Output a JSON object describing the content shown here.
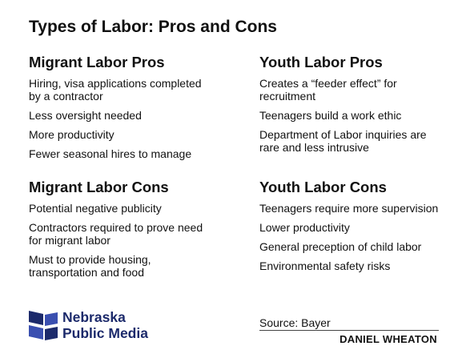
{
  "title": "Types of Labor: Pros and Cons",
  "sections": [
    {
      "heading": "Migrant Labor Pros",
      "items": [
        "Hiring, visa applications completed by a contractor",
        "Less oversight needed",
        "More productivity",
        "Fewer seasonal hires to manage"
      ]
    },
    {
      "heading": "Youth Labor Pros",
      "items": [
        "Creates a “feeder effect” for recruitment",
        "Teenagers build a work ethic",
        "Department of Labor inquiries are rare and less intrusive"
      ]
    },
    {
      "heading": "Migrant Labor Cons",
      "items": [
        "Potential negative publicity",
        "Contractors required to prove need for migrant labor",
        "Must to provide housing, transportation and food"
      ]
    },
    {
      "heading": "Youth Labor Cons",
      "items": [
        "Teenagers require more supervision",
        "Lower productivity",
        "General preception of child labor",
        "Environmental safety risks"
      ]
    }
  ],
  "logo": {
    "line1": "Nebraska",
    "line2": "Public Media"
  },
  "source": "Source: Bayer",
  "author": "DANIEL WHEATON"
}
